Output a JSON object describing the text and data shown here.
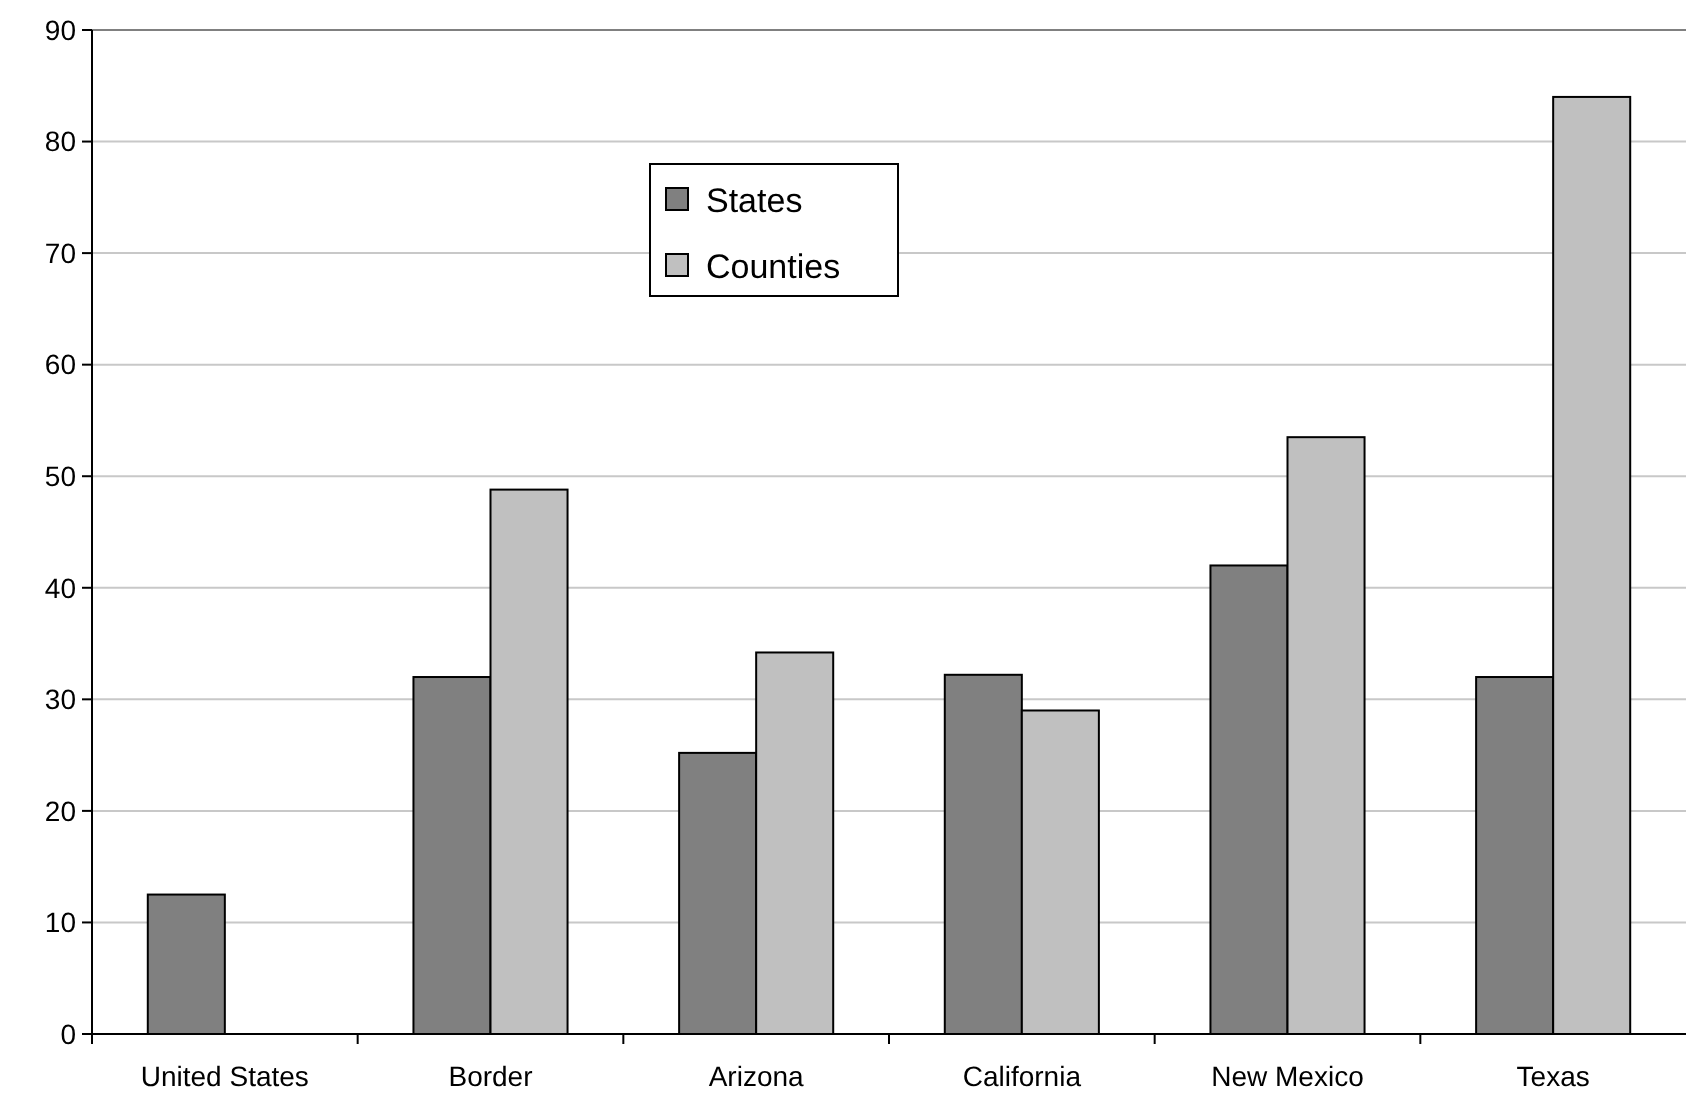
{
  "chart_data": {
    "type": "bar",
    "categories": [
      "United States",
      "Border",
      "Arizona",
      "California",
      "New Mexico",
      "Texas"
    ],
    "series": [
      {
        "name": "States",
        "color": "#808080",
        "values": [
          12.5,
          32,
          25.2,
          32.2,
          42,
          32
        ]
      },
      {
        "name": "Counties",
        "color": "#c0c0c0",
        "values": [
          null,
          48.8,
          34.2,
          29,
          53.5,
          84
        ]
      }
    ],
    "ylim": [
      0,
      90
    ],
    "yticks": [
      0,
      10,
      20,
      30,
      40,
      50,
      60,
      70,
      80,
      90
    ],
    "grid": "y",
    "legend": "top"
  }
}
